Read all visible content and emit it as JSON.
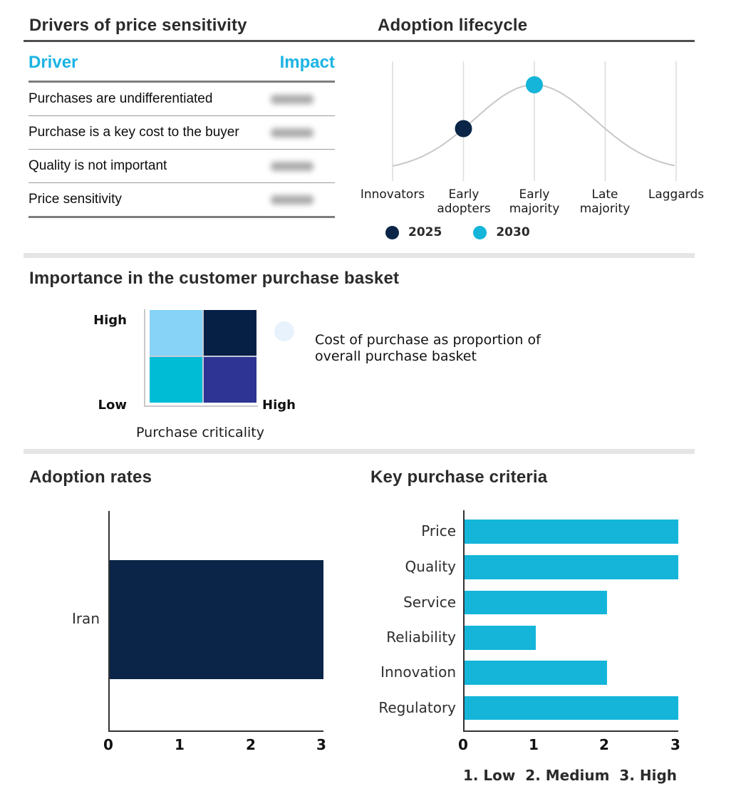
{
  "colors": {
    "accent_cyan": "#1CB4E3",
    "navy": "#0A2547",
    "bar_cyan": "#14B5D9",
    "curve_gray": "#C8C8C8",
    "grid_gray": "#DCDCDC",
    "redacted_gray": "#8F8F8F",
    "quad_dot": "#E8F2FC"
  },
  "drivers_table": {
    "title": "Drivers of price sensitivity",
    "col_driver": "Driver",
    "col_impact": "Impact",
    "rows": [
      "Purchases are undifferentiated",
      "Purchase is a key cost to the buyer",
      "Quality is not important",
      "Price sensitivity"
    ]
  },
  "basket": {
    "title": "Importance in the customer purchase basket",
    "y_top_label": "High",
    "y_bottom_label": "Low",
    "x_right_label": "High",
    "x_axis_label": "Purchase criticality",
    "annotation": "Cost of purchase as proportion of overall purchase basket"
  },
  "chart_data": [
    {
      "type": "line",
      "subtype": "bell-curve-with-markers",
      "title": "Adoption lifecycle",
      "categories": [
        "Innovators",
        "Early adopters",
        "Early majority",
        "Late majority",
        "Laggards"
      ],
      "series": [
        {
          "name": "2025",
          "category": "Early adopters",
          "color": "#0A2547"
        },
        {
          "name": "2030",
          "category": "Early majority",
          "color": "#14B5D9"
        }
      ],
      "legend_position": "bottom",
      "grid": "vertical"
    },
    {
      "type": "heatmap",
      "subtype": "2x2-quadrant",
      "title": "Importance in the customer purchase basket",
      "xlabel": "Purchase criticality",
      "x_range": [
        "Low",
        "High"
      ],
      "y_range": [
        "Low",
        "High"
      ],
      "cells": [
        {
          "pos": "top-left",
          "color": "#87D3F8"
        },
        {
          "pos": "top-right",
          "color": "#051F45",
          "marker": "dot"
        },
        {
          "pos": "bottom-left",
          "color": "#00BCD4"
        },
        {
          "pos": "bottom-right",
          "color": "#2D3494"
        }
      ],
      "annotation": "Cost of purchase as proportion of overall purchase basket"
    },
    {
      "type": "bar",
      "orientation": "horizontal",
      "title": "Adoption rates",
      "categories": [
        "Iran"
      ],
      "values": [
        3
      ],
      "xmax": 3,
      "xticks": [
        "0",
        "1",
        "2",
        "3"
      ],
      "bar_color": "#0A2547"
    },
    {
      "type": "bar",
      "orientation": "horizontal",
      "title": "Key purchase criteria",
      "categories": [
        "Price",
        "Quality",
        "Service",
        "Reliability",
        "Innovation",
        "Regulatory"
      ],
      "values": [
        3,
        3,
        2,
        1,
        2,
        3
      ],
      "xmax": 3,
      "xticks": [
        "0",
        "1",
        "2",
        "3"
      ],
      "bar_color": "#14B5D9",
      "footnote": "1. Low  2. Medium  3. High"
    }
  ]
}
